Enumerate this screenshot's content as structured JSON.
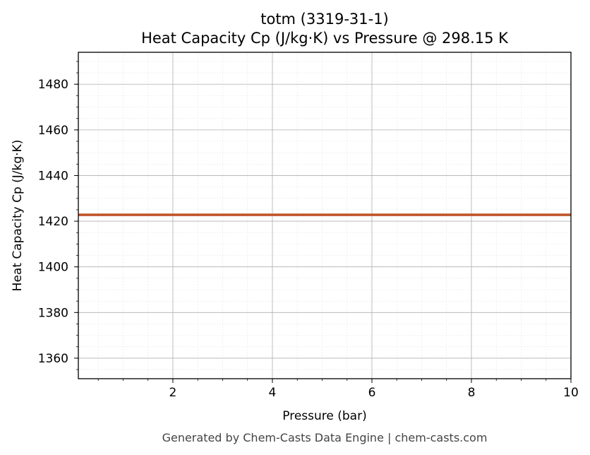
{
  "chart_data": {
    "type": "line",
    "title": "totm (3319-31-1)",
    "subtitle": "Heat Capacity Cp (J/kg·K) vs Pressure @ 298.15 K",
    "xlabel": "Pressure (bar)",
    "ylabel": "Heat Capacity Cp (J/kg·K)",
    "xlim": [
      0.1,
      10
    ],
    "ylim": [
      1351,
      1494
    ],
    "x_ticks": [
      2,
      4,
      6,
      8,
      10
    ],
    "y_ticks": [
      1360,
      1380,
      1400,
      1420,
      1440,
      1460,
      1480
    ],
    "x_minor_step": 0.5,
    "y_minor_step": 5,
    "grid": true,
    "series": [
      {
        "color": "#c0552b",
        "x": [
          0.1,
          1,
          2,
          3,
          4,
          5,
          6,
          7,
          8,
          9,
          10
        ],
        "y": [
          1422.8,
          1422.8,
          1422.8,
          1422.8,
          1422.8,
          1422.8,
          1422.8,
          1422.8,
          1422.8,
          1422.8,
          1422.8
        ]
      }
    ]
  },
  "footer": "Generated by Chem-Casts Data Engine | chem-casts.com"
}
